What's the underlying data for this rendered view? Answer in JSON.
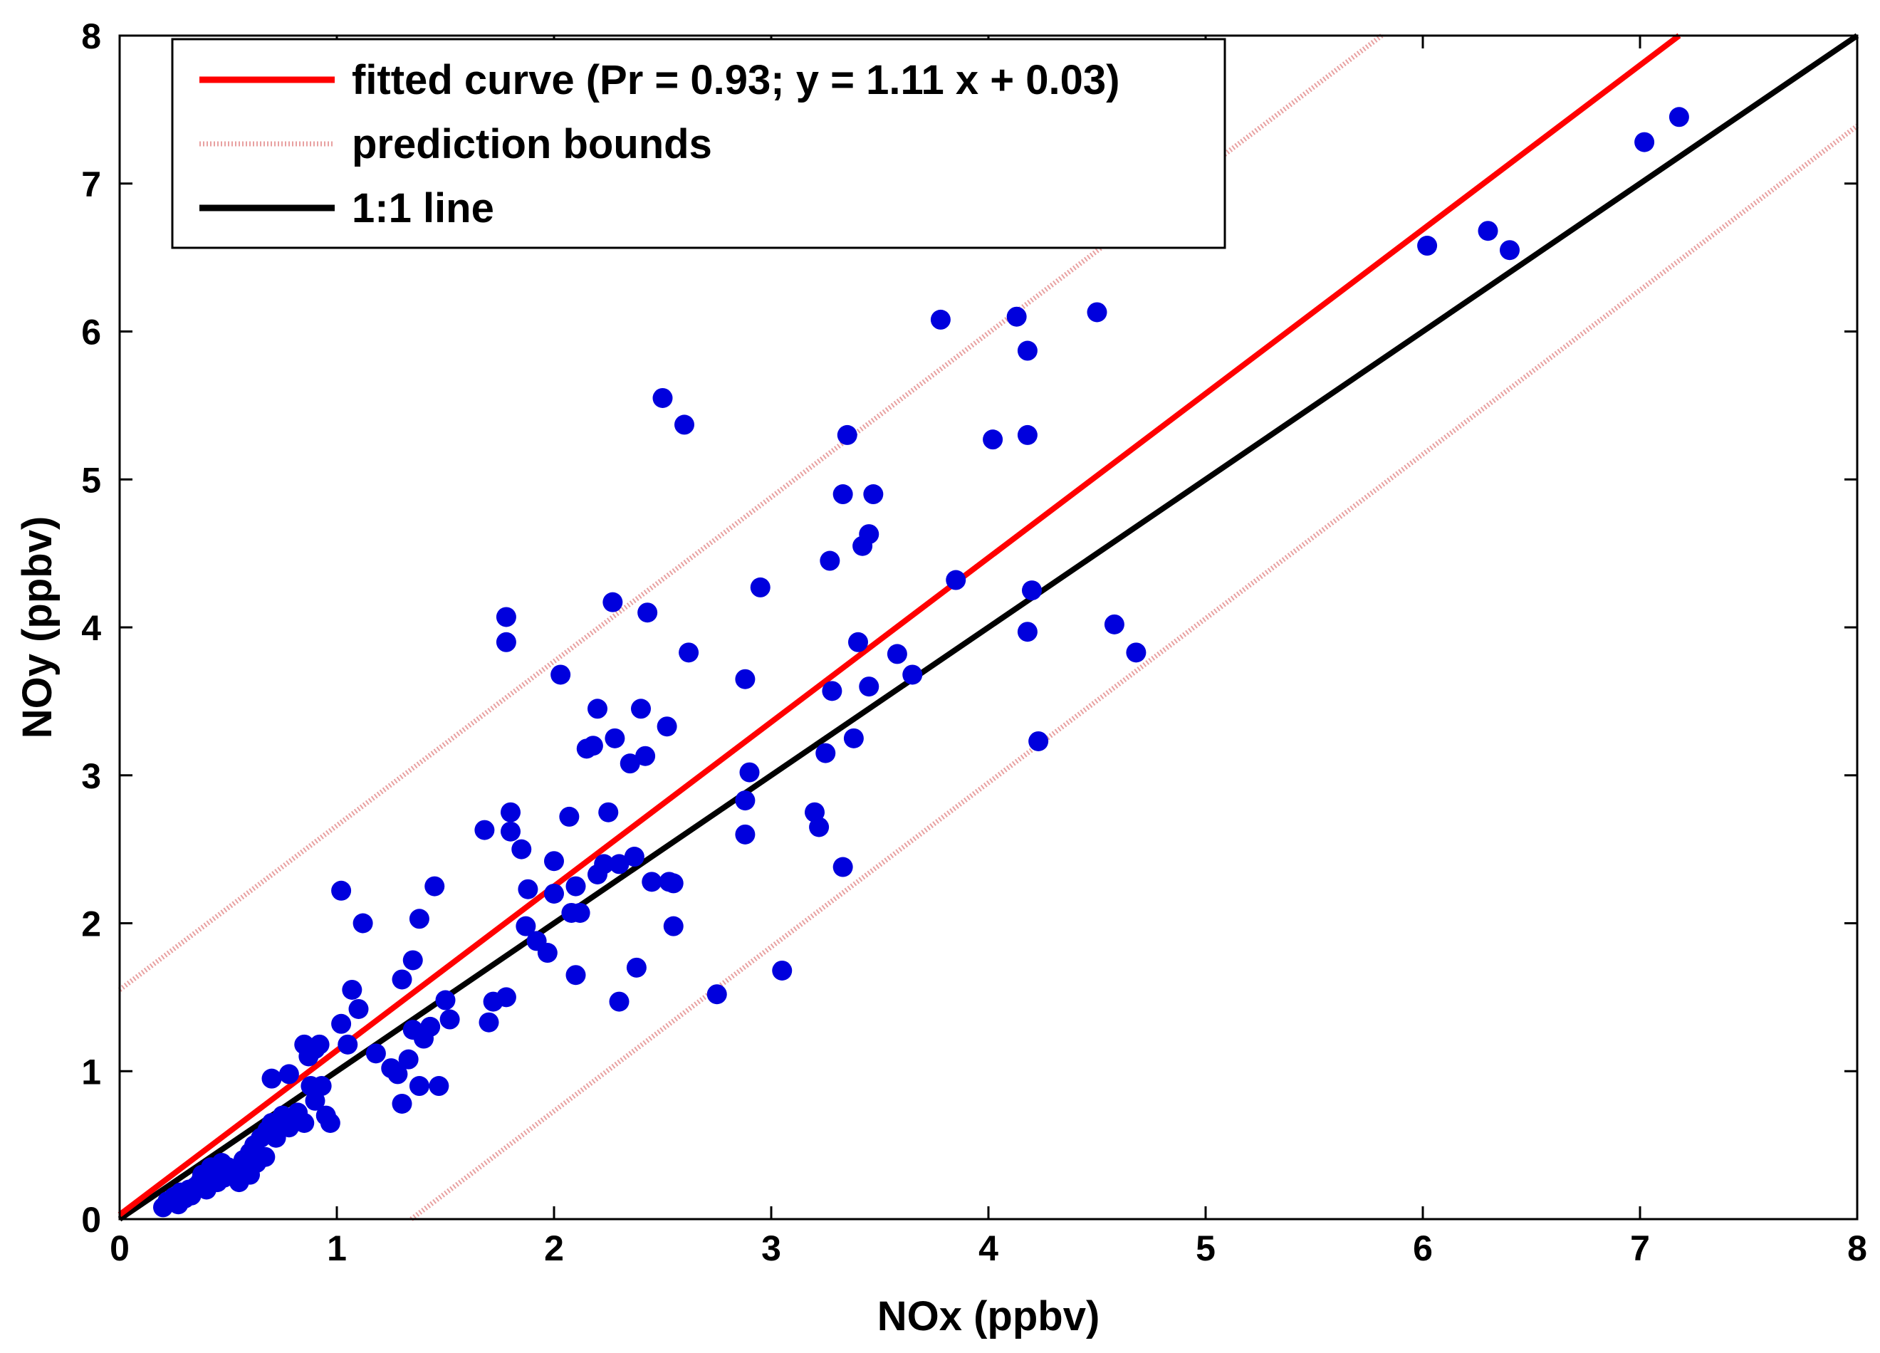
{
  "chart_data": {
    "type": "scatter",
    "title": "",
    "xlabel": "NOx (ppbv)",
    "ylabel": "NOy (ppbv)",
    "xlim": [
      0,
      8
    ],
    "ylim": [
      0,
      8
    ],
    "x_ticks": [
      "0",
      "1",
      "2",
      "3",
      "4",
      "5",
      "6",
      "7",
      "8"
    ],
    "y_ticks": [
      "0",
      "1",
      "2",
      "3",
      "4",
      "5",
      "6",
      "7",
      "8"
    ],
    "grid": false,
    "legend_position": "top-left",
    "legend": [
      {
        "label": "fitted curve (Pr = 0.93; y = 1.11 x + 0.03)",
        "color": "#ff0000",
        "style": "solid"
      },
      {
        "label": "prediction bounds",
        "color": "#e8a0a0",
        "style": "dotted"
      },
      {
        "label": "1:1 line",
        "color": "#000000",
        "style": "solid"
      }
    ],
    "fit": {
      "slope": 1.11,
      "intercept": 0.03,
      "pr": 0.93
    },
    "prediction_bound_offset": 1.52,
    "point_color": "#0000dd",
    "points": [
      [
        0.2,
        0.08
      ],
      [
        0.22,
        0.12
      ],
      [
        0.25,
        0.15
      ],
      [
        0.27,
        0.1
      ],
      [
        0.28,
        0.18
      ],
      [
        0.3,
        0.14
      ],
      [
        0.32,
        0.2
      ],
      [
        0.33,
        0.16
      ],
      [
        0.35,
        0.22
      ],
      [
        0.37,
        0.25
      ],
      [
        0.38,
        0.3
      ],
      [
        0.4,
        0.2
      ],
      [
        0.4,
        0.28
      ],
      [
        0.42,
        0.35
      ],
      [
        0.43,
        0.32
      ],
      [
        0.45,
        0.25
      ],
      [
        0.47,
        0.38
      ],
      [
        0.48,
        0.28
      ],
      [
        0.5,
        0.35
      ],
      [
        0.52,
        0.32
      ],
      [
        0.55,
        0.25
      ],
      [
        0.57,
        0.4
      ],
      [
        0.6,
        0.3
      ],
      [
        0.6,
        0.45
      ],
      [
        0.62,
        0.5
      ],
      [
        0.63,
        0.38
      ],
      [
        0.65,
        0.55
      ],
      [
        0.67,
        0.42
      ],
      [
        0.68,
        0.6
      ],
      [
        0.7,
        0.65
      ],
      [
        0.72,
        0.55
      ],
      [
        0.75,
        0.7
      ],
      [
        0.7,
        0.95
      ],
      [
        0.78,
        0.98
      ],
      [
        0.78,
        0.62
      ],
      [
        0.8,
        0.68
      ],
      [
        0.82,
        0.72
      ],
      [
        0.85,
        0.65
      ],
      [
        0.85,
        1.18
      ],
      [
        0.87,
        1.1
      ],
      [
        0.88,
        0.9
      ],
      [
        0.9,
        1.15
      ],
      [
        0.9,
        0.8
      ],
      [
        0.92,
        1.18
      ],
      [
        0.93,
        0.9
      ],
      [
        0.95,
        0.7
      ],
      [
        0.97,
        0.65
      ],
      [
        1.02,
        2.22
      ],
      [
        1.02,
        1.32
      ],
      [
        1.05,
        1.18
      ],
      [
        1.07,
        1.55
      ],
      [
        1.1,
        1.42
      ],
      [
        1.12,
        2.0
      ],
      [
        1.18,
        1.12
      ],
      [
        1.25,
        1.02
      ],
      [
        1.28,
        0.98
      ],
      [
        1.3,
        0.78
      ],
      [
        1.3,
        1.62
      ],
      [
        1.33,
        1.08
      ],
      [
        1.35,
        1.75
      ],
      [
        1.35,
        1.28
      ],
      [
        1.38,
        2.03
      ],
      [
        1.38,
        0.9
      ],
      [
        1.4,
        1.22
      ],
      [
        1.43,
        1.3
      ],
      [
        1.45,
        2.25
      ],
      [
        1.47,
        0.9
      ],
      [
        1.5,
        1.48
      ],
      [
        1.52,
        1.35
      ],
      [
        1.68,
        2.63
      ],
      [
        1.7,
        1.33
      ],
      [
        1.72,
        1.47
      ],
      [
        1.78,
        4.07
      ],
      [
        1.78,
        3.9
      ],
      [
        1.78,
        1.5
      ],
      [
        1.8,
        2.75
      ],
      [
        1.8,
        2.62
      ],
      [
        1.85,
        2.5
      ],
      [
        1.87,
        1.98
      ],
      [
        1.88,
        2.23
      ],
      [
        1.92,
        1.88
      ],
      [
        1.97,
        1.8
      ],
      [
        2.0,
        2.2
      ],
      [
        2.0,
        2.42
      ],
      [
        2.03,
        3.68
      ],
      [
        2.07,
        2.72
      ],
      [
        2.08,
        2.07
      ],
      [
        2.1,
        2.25
      ],
      [
        2.1,
        1.65
      ],
      [
        2.12,
        2.07
      ],
      [
        2.15,
        3.18
      ],
      [
        2.18,
        3.2
      ],
      [
        2.2,
        3.45
      ],
      [
        2.2,
        2.33
      ],
      [
        2.23,
        2.4
      ],
      [
        2.25,
        2.75
      ],
      [
        2.27,
        4.17
      ],
      [
        2.28,
        3.25
      ],
      [
        2.3,
        1.47
      ],
      [
        2.3,
        2.4
      ],
      [
        2.35,
        3.08
      ],
      [
        2.37,
        2.45
      ],
      [
        2.38,
        1.7
      ],
      [
        2.4,
        3.45
      ],
      [
        2.42,
        3.13
      ],
      [
        2.43,
        4.1
      ],
      [
        2.45,
        2.28
      ],
      [
        2.5,
        5.55
      ],
      [
        2.52,
        3.33
      ],
      [
        2.53,
        2.28
      ],
      [
        2.55,
        2.27
      ],
      [
        2.55,
        1.98
      ],
      [
        2.6,
        5.37
      ],
      [
        2.62,
        3.83
      ],
      [
        2.75,
        1.52
      ],
      [
        2.88,
        3.65
      ],
      [
        2.88,
        2.83
      ],
      [
        2.88,
        2.6
      ],
      [
        2.9,
        3.02
      ],
      [
        2.95,
        4.27
      ],
      [
        3.05,
        1.68
      ],
      [
        3.2,
        2.75
      ],
      [
        3.22,
        2.65
      ],
      [
        3.25,
        3.15
      ],
      [
        3.27,
        4.45
      ],
      [
        3.28,
        3.57
      ],
      [
        3.33,
        2.38
      ],
      [
        3.33,
        4.9
      ],
      [
        3.35,
        5.3
      ],
      [
        3.38,
        3.25
      ],
      [
        3.4,
        3.9
      ],
      [
        3.42,
        4.55
      ],
      [
        3.45,
        4.63
      ],
      [
        3.45,
        3.6
      ],
      [
        3.47,
        4.9
      ],
      [
        3.58,
        3.82
      ],
      [
        3.65,
        3.68
      ],
      [
        3.78,
        6.08
      ],
      [
        3.85,
        4.32
      ],
      [
        4.02,
        5.27
      ],
      [
        4.13,
        6.1
      ],
      [
        4.18,
        5.3
      ],
      [
        4.18,
        3.97
      ],
      [
        4.18,
        5.87
      ],
      [
        4.2,
        4.25
      ],
      [
        4.23,
        3.23
      ],
      [
        4.5,
        6.13
      ],
      [
        4.58,
        4.02
      ],
      [
        4.68,
        3.83
      ],
      [
        6.02,
        6.58
      ],
      [
        6.3,
        6.68
      ],
      [
        6.4,
        6.55
      ],
      [
        7.02,
        7.28
      ],
      [
        7.18,
        7.45
      ]
    ]
  }
}
